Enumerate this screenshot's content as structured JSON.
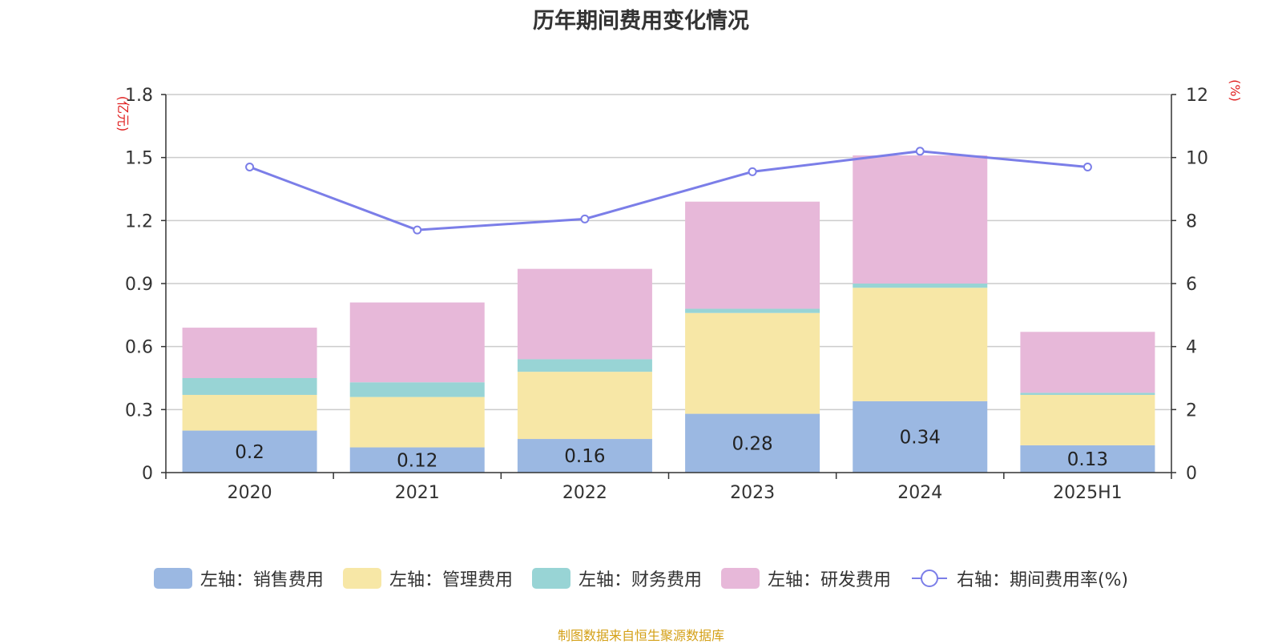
{
  "chart_data": {
    "type": "bar",
    "title": "历年期间费用变化情况",
    "left_unit": "(亿元)",
    "right_unit": "(%)",
    "categories": [
      "2020",
      "2021",
      "2022",
      "2023",
      "2024",
      "2025H1"
    ],
    "left_axis": {
      "ticks": [
        "0",
        "0.3",
        "0.6",
        "0.9",
        "1.2",
        "1.5",
        "1.8"
      ],
      "min": 0,
      "max": 1.8
    },
    "right_axis": {
      "ticks": [
        "0",
        "2",
        "4",
        "6",
        "8",
        "10",
        "12"
      ],
      "min": 0,
      "max": 12
    },
    "series": [
      {
        "name": "左轴：销售费用",
        "color": "#9bb8e2",
        "values": [
          0.2,
          0.12,
          0.16,
          0.28,
          0.34,
          0.13
        ]
      },
      {
        "name": "左轴：管理费用",
        "color": "#f7e7a6",
        "values": [
          0.17,
          0.24,
          0.32,
          0.48,
          0.54,
          0.24
        ]
      },
      {
        "name": "左轴：财务费用",
        "color": "#98d4d5",
        "values": [
          0.08,
          0.07,
          0.06,
          0.02,
          0.02,
          0.01
        ]
      },
      {
        "name": "左轴：研发费用",
        "color": "#e7b8d9",
        "values": [
          0.24,
          0.38,
          0.43,
          0.51,
          0.61,
          0.29
        ]
      }
    ],
    "data_labels": [
      "0.2",
      "0.12",
      "0.16",
      "0.28",
      "0.34",
      "0.13"
    ],
    "line": {
      "name": "右轴：期间费用率(%)",
      "color": "#7b7ee8",
      "values": [
        9.7,
        7.7,
        8.05,
        9.55,
        10.2,
        9.7
      ]
    },
    "grid": true,
    "legend": "bottom"
  },
  "source": "制图数据来自恒生聚源数据库"
}
